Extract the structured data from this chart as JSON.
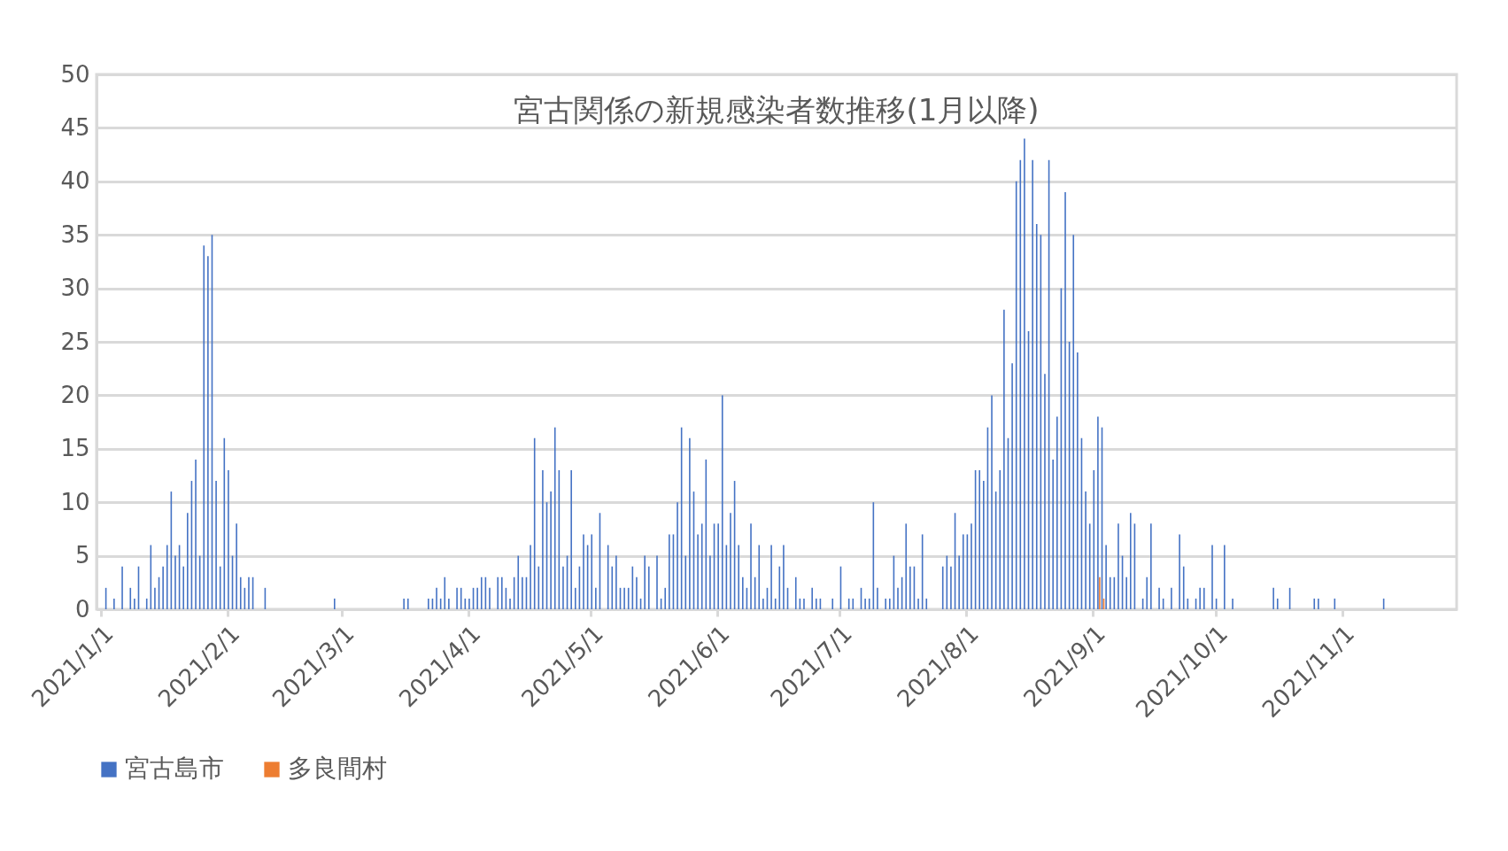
{
  "chart_data": {
    "type": "bar",
    "title": "宮古関係の新規感染者数推移(1月以降)",
    "series": [
      {
        "name": "宮古島市",
        "color": "#4472c4",
        "x": [
          "2021-01-02",
          "2021-01-04",
          "2021-01-06",
          "2021-01-08",
          "2021-01-09",
          "2021-01-10",
          "2021-01-12",
          "2021-01-13",
          "2021-01-14",
          "2021-01-15",
          "2021-01-16",
          "2021-01-17",
          "2021-01-18",
          "2021-01-19",
          "2021-01-20",
          "2021-01-21",
          "2021-01-22",
          "2021-01-23",
          "2021-01-24",
          "2021-01-25",
          "2021-01-26",
          "2021-01-27",
          "2021-01-28",
          "2021-01-29",
          "2021-01-30",
          "2021-01-31",
          "2021-02-01",
          "2021-02-02",
          "2021-02-03",
          "2021-02-04",
          "2021-02-05",
          "2021-02-06",
          "2021-02-07",
          "2021-02-10",
          "2021-02-27",
          "2021-03-16",
          "2021-03-17",
          "2021-03-22",
          "2021-03-23",
          "2021-03-24",
          "2021-03-25",
          "2021-03-26",
          "2021-03-27",
          "2021-03-29",
          "2021-03-30",
          "2021-03-31",
          "2021-04-01",
          "2021-04-02",
          "2021-04-03",
          "2021-04-04",
          "2021-04-05",
          "2021-04-06",
          "2021-04-08",
          "2021-04-09",
          "2021-04-10",
          "2021-04-11",
          "2021-04-12",
          "2021-04-13",
          "2021-04-14",
          "2021-04-15",
          "2021-04-16",
          "2021-04-17",
          "2021-04-18",
          "2021-04-19",
          "2021-04-20",
          "2021-04-21",
          "2021-04-22",
          "2021-04-23",
          "2021-04-24",
          "2021-04-25",
          "2021-04-26",
          "2021-04-27",
          "2021-04-28",
          "2021-04-29",
          "2021-04-30",
          "2021-05-01",
          "2021-05-02",
          "2021-05-03",
          "2021-05-05",
          "2021-05-06",
          "2021-05-07",
          "2021-05-08",
          "2021-05-09",
          "2021-05-10",
          "2021-05-11",
          "2021-05-12",
          "2021-05-13",
          "2021-05-14",
          "2021-05-15",
          "2021-05-17",
          "2021-05-18",
          "2021-05-19",
          "2021-05-20",
          "2021-05-21",
          "2021-05-22",
          "2021-05-23",
          "2021-05-24",
          "2021-05-25",
          "2021-05-26",
          "2021-05-27",
          "2021-05-28",
          "2021-05-29",
          "2021-05-30",
          "2021-05-31",
          "2021-06-01",
          "2021-06-02",
          "2021-06-03",
          "2021-06-04",
          "2021-06-05",
          "2021-06-06",
          "2021-06-07",
          "2021-06-08",
          "2021-06-09",
          "2021-06-10",
          "2021-06-11",
          "2021-06-12",
          "2021-06-13",
          "2021-06-14",
          "2021-06-15",
          "2021-06-16",
          "2021-06-17",
          "2021-06-18",
          "2021-06-20",
          "2021-06-21",
          "2021-06-22",
          "2021-06-24",
          "2021-06-25",
          "2021-06-26",
          "2021-06-29",
          "2021-07-01",
          "2021-07-03",
          "2021-07-04",
          "2021-07-06",
          "2021-07-07",
          "2021-07-08",
          "2021-07-09",
          "2021-07-10",
          "2021-07-12",
          "2021-07-13",
          "2021-07-14",
          "2021-07-15",
          "2021-07-16",
          "2021-07-17",
          "2021-07-18",
          "2021-07-19",
          "2021-07-20",
          "2021-07-21",
          "2021-07-22",
          "2021-07-26",
          "2021-07-27",
          "2021-07-28",
          "2021-07-29",
          "2021-07-30",
          "2021-07-31",
          "2021-08-01",
          "2021-08-02",
          "2021-08-03",
          "2021-08-04",
          "2021-08-05",
          "2021-08-06",
          "2021-08-07",
          "2021-08-08",
          "2021-08-09",
          "2021-08-10",
          "2021-08-11",
          "2021-08-12",
          "2021-08-13",
          "2021-08-14",
          "2021-08-15",
          "2021-08-16",
          "2021-08-17",
          "2021-08-18",
          "2021-08-19",
          "2021-08-20",
          "2021-08-21",
          "2021-08-22",
          "2021-08-23",
          "2021-08-24",
          "2021-08-25",
          "2021-08-26",
          "2021-08-27",
          "2021-08-28",
          "2021-08-29",
          "2021-08-30",
          "2021-08-31",
          "2021-09-01",
          "2021-09-02",
          "2021-09-03",
          "2021-09-04",
          "2021-09-05",
          "2021-09-06",
          "2021-09-07",
          "2021-09-08",
          "2021-09-09",
          "2021-09-10",
          "2021-09-11",
          "2021-09-13",
          "2021-09-14",
          "2021-09-15",
          "2021-09-17",
          "2021-09-18",
          "2021-09-20",
          "2021-09-22",
          "2021-09-23",
          "2021-09-24",
          "2021-09-26",
          "2021-09-27",
          "2021-09-28",
          "2021-09-30",
          "2021-10-01",
          "2021-10-03",
          "2021-10-05",
          "2021-10-15",
          "2021-10-16",
          "2021-10-19",
          "2021-10-25",
          "2021-10-26",
          "2021-10-30",
          "2021-11-11"
        ],
        "values": [
          2,
          1,
          4,
          2,
          1,
          4,
          1,
          6,
          2,
          3,
          4,
          6,
          11,
          5,
          6,
          4,
          9,
          12,
          14,
          5,
          34,
          33,
          35,
          12,
          4,
          16,
          13,
          5,
          8,
          3,
          2,
          3,
          3,
          2,
          1,
          1,
          1,
          1,
          1,
          2,
          1,
          3,
          1,
          2,
          2,
          1,
          1,
          2,
          2,
          3,
          3,
          2,
          3,
          3,
          2,
          1,
          3,
          5,
          3,
          3,
          6,
          16,
          4,
          13,
          10,
          11,
          17,
          13,
          4,
          5,
          13,
          2,
          4,
          7,
          6,
          7,
          2,
          9,
          6,
          4,
          5,
          2,
          2,
          2,
          4,
          3,
          1,
          5,
          4,
          5,
          1,
          2,
          7,
          7,
          10,
          17,
          5,
          16,
          11,
          7,
          8,
          14,
          5,
          8,
          8,
          20,
          6,
          9,
          12,
          6,
          3,
          2,
          8,
          3,
          6,
          1,
          2,
          6,
          1,
          4,
          6,
          2,
          3,
          1,
          1,
          2,
          1,
          1,
          1,
          4,
          1,
          1,
          2,
          1,
          1,
          10,
          2,
          1,
          1,
          5,
          2,
          3,
          8,
          4,
          4,
          1,
          7,
          1,
          4,
          5,
          4,
          9,
          5,
          7,
          7,
          8,
          13,
          13,
          12,
          17,
          20,
          11,
          13,
          28,
          16,
          23,
          40,
          42,
          44,
          26,
          42,
          36,
          35,
          22,
          42,
          14,
          18,
          30,
          39,
          25,
          35,
          24,
          16,
          11,
          8,
          13,
          18,
          17,
          6,
          3,
          3,
          8,
          5,
          3,
          9,
          8,
          1,
          3,
          8,
          2,
          1,
          2,
          7,
          4,
          1,
          1,
          2,
          2,
          6,
          1,
          6,
          1,
          2,
          1,
          2,
          1,
          1,
          1,
          1
        ]
      },
      {
        "name": "多良間村",
        "color": "#ed7d31",
        "x": [
          "2021-09-02",
          "2021-09-03"
        ],
        "values": [
          3,
          1
        ]
      }
    ],
    "xlim": [
      "2021-01-01",
      "2021-11-28"
    ],
    "xticks": [
      {
        "value": "2021-01-01",
        "label": "2021/1/1"
      },
      {
        "value": "2021-02-01",
        "label": "2021/2/1"
      },
      {
        "value": "2021-03-01",
        "label": "2021/3/1"
      },
      {
        "value": "2021-04-01",
        "label": "2021/4/1"
      },
      {
        "value": "2021-05-01",
        "label": "2021/5/1"
      },
      {
        "value": "2021-06-01",
        "label": "2021/6/1"
      },
      {
        "value": "2021-07-01",
        "label": "2021/7/1"
      },
      {
        "value": "2021-08-01",
        "label": "2021/8/1"
      },
      {
        "value": "2021-09-01",
        "label": "2021/9/1"
      },
      {
        "value": "2021-10-01",
        "label": "2021/10/1"
      },
      {
        "value": "2021-11-01",
        "label": "2021/11/1"
      }
    ],
    "ylim": [
      0,
      50
    ],
    "yticks": [
      0,
      5,
      10,
      15,
      20,
      25,
      30,
      35,
      40,
      45,
      50
    ],
    "grid": "y",
    "legend": "bottom"
  }
}
